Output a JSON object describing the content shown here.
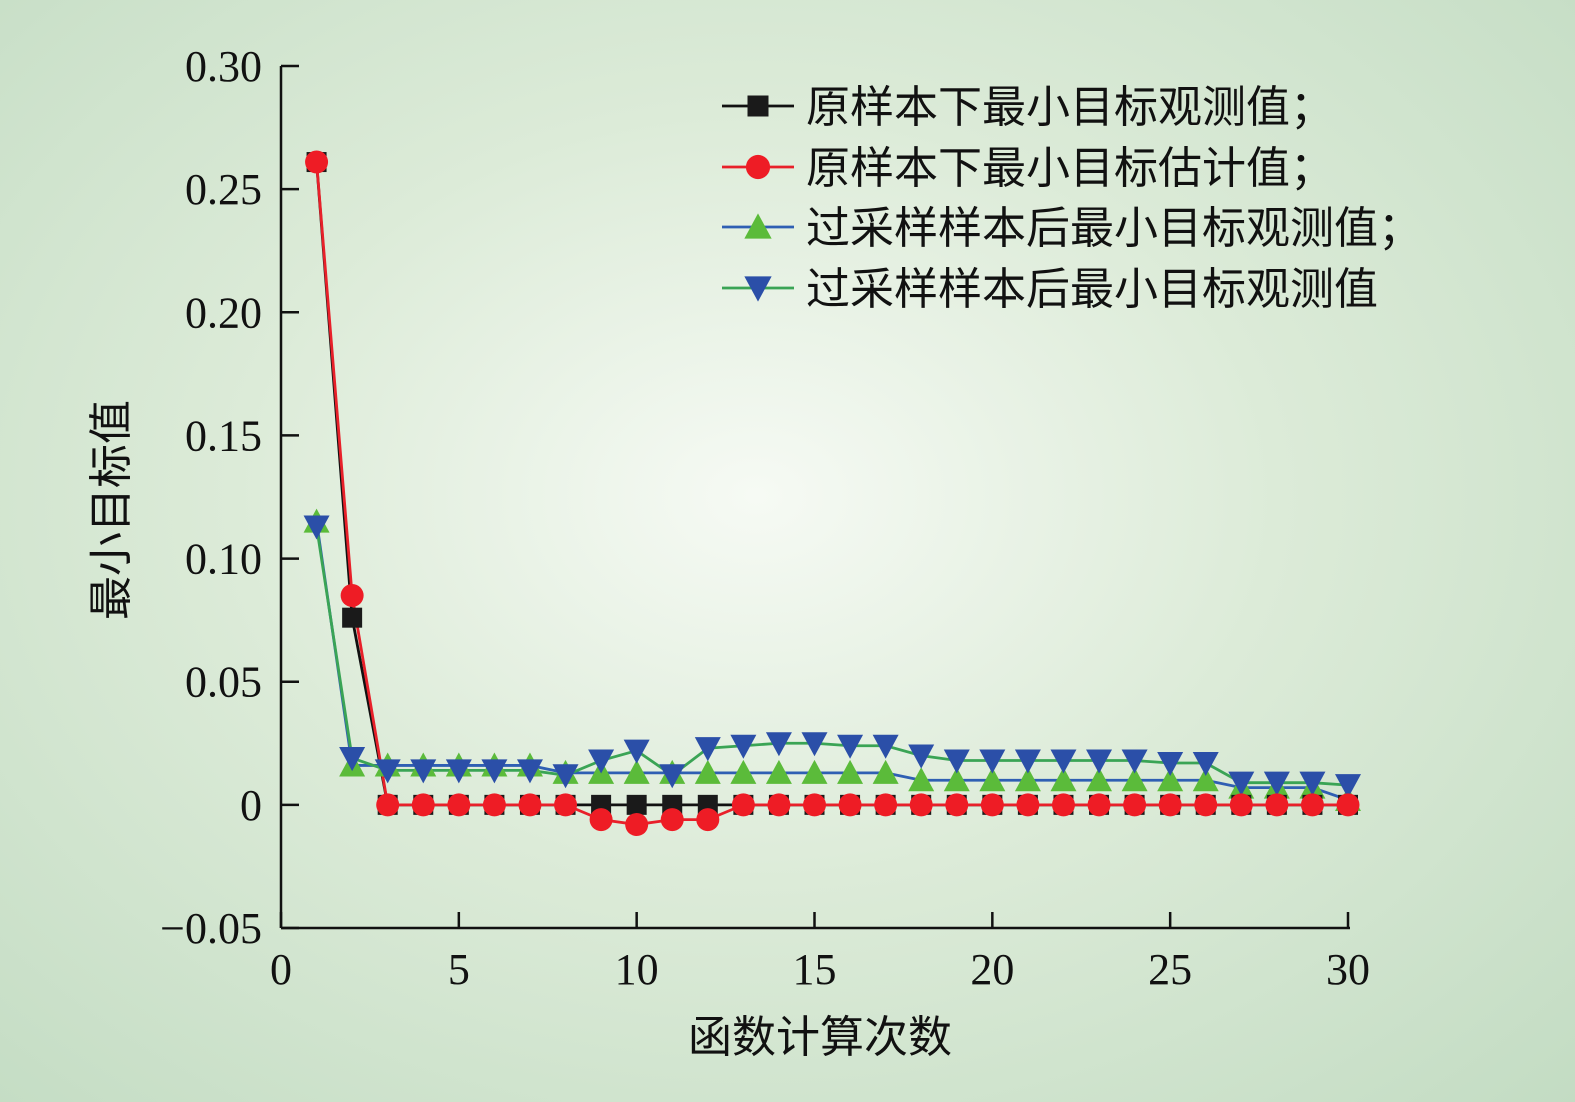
{
  "chart_data": {
    "type": "line",
    "title": "",
    "xlabel": "函数计算次数",
    "ylabel": "最小目标值",
    "xlim": [
      0,
      30
    ],
    "ylim": [
      -0.05,
      0.3
    ],
    "xticks": [
      0,
      5,
      10,
      15,
      20,
      25,
      30
    ],
    "xtick_labels": [
      "0",
      "5",
      "10",
      "15",
      "20",
      "25",
      "30"
    ],
    "yticks": [
      -0.05,
      0,
      0.05,
      0.1,
      0.15,
      0.2,
      0.25,
      0.3
    ],
    "ytick_labels": [
      "−0.05",
      "0",
      "0.05",
      "0.10",
      "0.15",
      "0.20",
      "0.25",
      "0.30"
    ],
    "grid": false,
    "legend_position": "top-right",
    "x": [
      1,
      2,
      3,
      4,
      5,
      6,
      7,
      8,
      9,
      10,
      11,
      12,
      13,
      14,
      15,
      16,
      17,
      18,
      19,
      20,
      21,
      22,
      23,
      24,
      25,
      26,
      27,
      28,
      29,
      30
    ],
    "series": [
      {
        "name": "原样本下最小目标观测值；",
        "marker": "square",
        "line_color": "#111111",
        "marker_color": "#1a1a1a",
        "values": [
          0.261,
          0.076,
          0,
          0,
          0,
          0,
          0,
          0,
          0,
          0,
          0,
          0,
          0,
          0,
          0,
          0,
          0,
          0,
          0,
          0,
          0,
          0,
          0,
          0,
          0,
          0,
          0,
          0,
          0,
          0
        ]
      },
      {
        "name": "原样本下最小目标估计值；",
        "marker": "circle",
        "line_color": "#e8202a",
        "marker_color": "#ee1c25",
        "values": [
          0.261,
          0.085,
          0,
          0,
          0,
          0,
          0,
          0,
          -0.006,
          -0.008,
          -0.006,
          -0.006,
          0,
          0,
          0,
          0,
          0,
          0,
          0,
          0,
          0,
          0,
          0,
          0,
          0,
          0,
          0,
          0,
          0,
          0
        ]
      },
      {
        "name": "过采样样本后最小目标观测值；",
        "marker": "triangle-up",
        "line_color": "#2f5fb3",
        "marker_color": "#5bbb3a",
        "values": [
          0.115,
          0.016,
          0.016,
          0.016,
          0.016,
          0.016,
          0.016,
          0.013,
          0.013,
          0.013,
          0.013,
          0.013,
          0.013,
          0.013,
          0.013,
          0.013,
          0.013,
          0.01,
          0.01,
          0.01,
          0.01,
          0.01,
          0.01,
          0.01,
          0.01,
          0.01,
          0.007,
          0.007,
          0.007,
          0.002
        ]
      },
      {
        "name": "过采样样本后最小目标观测值",
        "marker": "triangle-down",
        "line_color": "#3aa455",
        "marker_color": "#2b4fa8",
        "values": [
          0.113,
          0.019,
          0.014,
          0.014,
          0.014,
          0.014,
          0.014,
          0.012,
          0.018,
          0.022,
          0.012,
          0.023,
          0.024,
          0.025,
          0.025,
          0.024,
          0.024,
          0.02,
          0.018,
          0.018,
          0.018,
          0.018,
          0.018,
          0.018,
          0.017,
          0.017,
          0.009,
          0.009,
          0.009,
          0.008
        ]
      }
    ]
  }
}
